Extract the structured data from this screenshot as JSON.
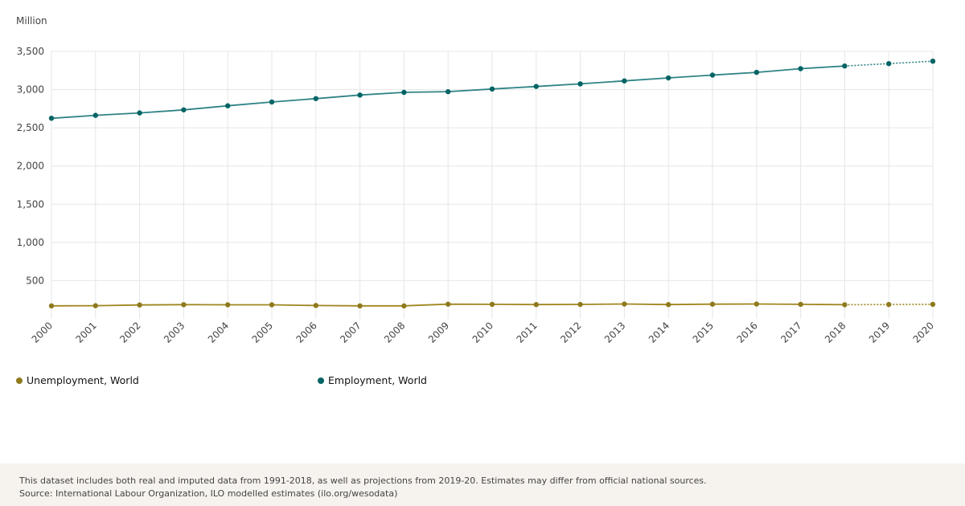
{
  "chart_data": {
    "type": "line",
    "ylabel": "Million",
    "x": [
      "2000",
      "2001",
      "2002",
      "2003",
      "2004",
      "2005",
      "2006",
      "2007",
      "2008",
      "2009",
      "2010",
      "2011",
      "2012",
      "2013",
      "2014",
      "2015",
      "2016",
      "2017",
      "2018",
      "2019",
      "2020"
    ],
    "ylim": [
      0,
      3500
    ],
    "yticks": [
      500,
      1000,
      1500,
      2000,
      2500,
      3000,
      3500
    ],
    "ytick_labels": [
      "500",
      "1,000",
      "1,500",
      "2,000",
      "2,500",
      "3,000",
      "3,500"
    ],
    "grid": true,
    "projection_from": "2019",
    "legend_position": "bottom",
    "series": [
      {
        "name": "Unemployment, World",
        "color": "#a0861f",
        "dot_color": "#8e7a1c",
        "values": [
          170,
          172,
          182,
          186,
          184,
          184,
          175,
          170,
          170,
          192,
          190,
          187,
          189,
          194,
          187,
          192,
          194,
          190,
          185,
          188,
          190
        ]
      },
      {
        "name": "Employment, World",
        "color": "#2f8385",
        "dot_color": "#006464",
        "values": [
          2625,
          2663,
          2695,
          2735,
          2788,
          2838,
          2882,
          2929,
          2964,
          2973,
          3008,
          3041,
          3075,
          3114,
          3153,
          3190,
          3226,
          3274,
          3309,
          3340,
          3372
        ]
      }
    ]
  },
  "footer": {
    "note": "This dataset includes both real and imputed data from 1991-2018, as well as projections from 2019-20. Estimates may differ from official national sources.",
    "source": "Source: International Labour Organization, ILO modelled estimates (ilo.org/wesodata)"
  }
}
